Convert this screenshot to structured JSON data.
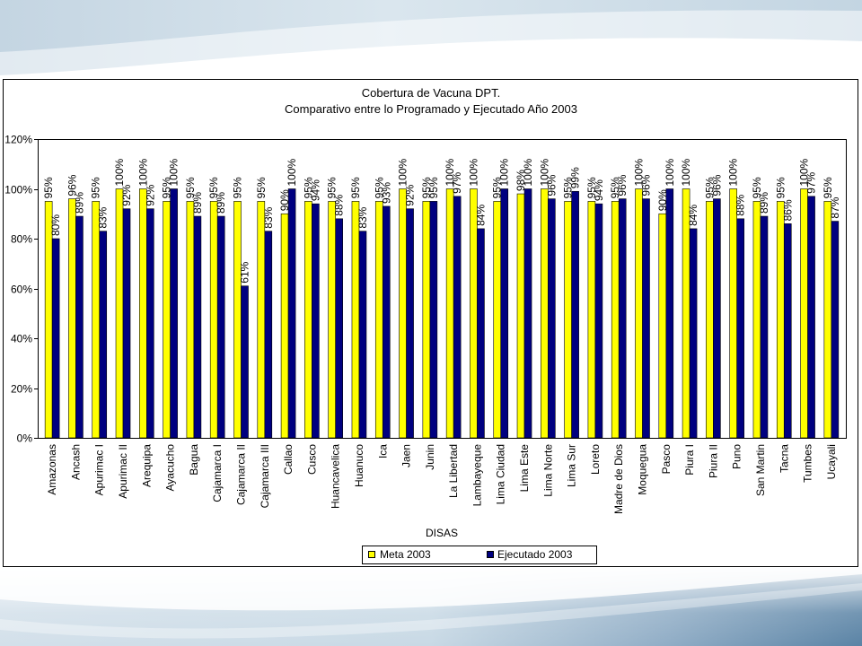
{
  "chart_data": {
    "type": "bar",
    "title": "Cobertura de Vacuna DPT.",
    "subtitle": "Comparativo entre lo Programado y Ejecutado Año 2003",
    "xlabel": "DISAS",
    "ylim": [
      0,
      120
    ],
    "yticks": [
      0,
      20,
      40,
      60,
      80,
      100,
      120
    ],
    "ytick_labels": [
      "0%",
      "20%",
      "40%",
      "60%",
      "80%",
      "100%",
      "120%"
    ],
    "categories": [
      "Amazonas",
      "Ancash",
      "Apurimac I",
      "Apurimac II",
      "Arequipa",
      "Ayacucho",
      "Bagua",
      "Cajamarca I",
      "Cajamarca II",
      "Cajamarca III",
      "Callao",
      "Cusco",
      "Huancavelica",
      "Huanuco",
      "Ica",
      "Jaen",
      "Junin",
      "La Libertad",
      "Lambayeque",
      "Lima Ciudad",
      "Lima Este",
      "Lima Norte",
      "Lima Sur",
      "Loreto",
      "Madre de Dios",
      "Moquegua",
      "Pasco",
      "Piura I",
      "Piura II",
      "Puno",
      "San Martin",
      "Tacna",
      "Tumbes",
      "Ucayali"
    ],
    "series": [
      {
        "name": "Meta 2003",
        "color": "#FFFF00",
        "values": [
          95,
          96,
          95,
          100,
          100,
          95,
          95,
          95,
          95,
          95,
          90,
          95,
          95,
          95,
          95,
          100,
          95,
          100,
          100,
          95,
          98,
          100,
          95,
          95,
          95,
          100,
          90,
          100,
          95,
          100,
          95,
          95,
          100,
          95
        ],
        "labels": [
          "95%",
          "96%",
          "95%",
          "100%",
          "100%",
          "95%",
          "95%",
          "95%",
          "95%",
          "95%",
          "90%",
          "95%",
          "95%",
          "95%",
          "95%",
          "100%",
          "95%",
          "100%",
          "100%",
          "95%",
          "98%",
          "100%",
          "95%",
          "95%",
          "95%",
          "100%",
          "90%",
          "100%",
          "95%",
          "100%",
          "95%",
          "95%",
          "100%",
          "95%"
        ]
      },
      {
        "name": "Ejecutado 2003",
        "color": "#000080",
        "values": [
          80,
          89,
          83,
          92,
          92,
          100,
          89,
          89,
          61,
          83,
          100,
          94,
          88,
          83,
          93,
          92,
          95,
          97,
          84,
          100,
          100,
          96,
          99,
          94,
          96,
          96,
          100,
          84,
          96,
          88,
          89,
          86,
          97,
          87
        ],
        "labels": [
          "80%",
          "89%",
          "83%",
          "92%",
          "92%",
          "100%",
          "89%",
          "89%",
          "61%",
          "83%",
          "100%",
          "94%",
          "88%",
          "83%",
          "93%",
          "92%",
          "95%",
          "97%",
          "84%",
          "100%",
          "100%",
          "96%",
          "99%",
          "94%",
          "96%",
          "96%",
          "100%",
          "84%",
          "96%",
          "88%",
          "89%",
          "86%",
          "97%",
          "87%"
        ]
      }
    ],
    "grid": false,
    "legend": "bottom"
  }
}
